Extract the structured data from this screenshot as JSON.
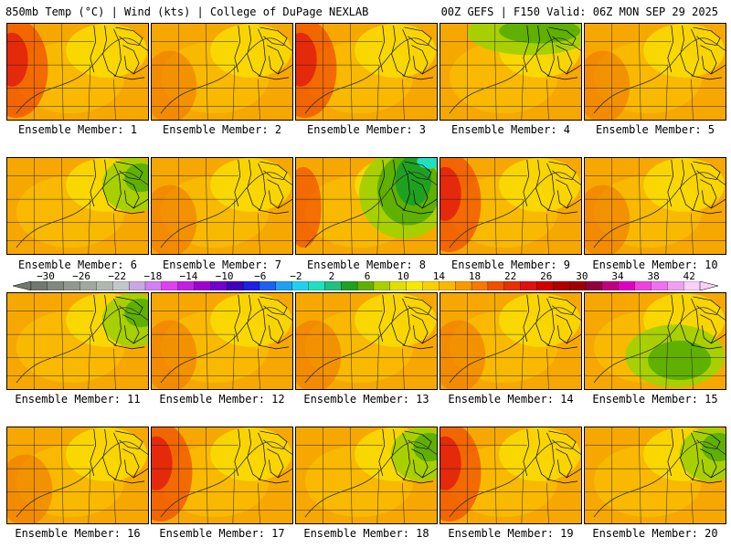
{
  "header": {
    "left": "850mb Temp (°C) | Wind (kts) | College of DuPage NEXLAB",
    "right": "00Z GEFS | F150 Valid: 06Z MON SEP 29 2025"
  },
  "colorbar": {
    "labels": [
      "−30",
      "−26",
      "−22",
      "−18",
      "−14",
      "−10",
      "−6",
      "−2",
      "2",
      "6",
      "10",
      "14",
      "18",
      "22",
      "26",
      "30",
      "34",
      "38",
      "42"
    ],
    "colors": [
      "#707870",
      "#808880",
      "#909890",
      "#a0a8a0",
      "#b0b8b0",
      "#c0c8c8",
      "#c8a8e0",
      "#d080f0",
      "#e040f0",
      "#c020e0",
      "#a000d0",
      "#7000d0",
      "#4000c0",
      "#2020e0",
      "#2060f0",
      "#20a0f0",
      "#20d0f0",
      "#20e0c0",
      "#20c080",
      "#20a020",
      "#60b000",
      "#a8d000",
      "#e0e000",
      "#f8e800",
      "#f8d000",
      "#f8b800",
      "#f89800",
      "#f87800",
      "#f05000",
      "#e83000",
      "#e01010",
      "#d00000",
      "#b00000",
      "#a00000",
      "#900040",
      "#c00080",
      "#e000c0",
      "#f040e0",
      "#f070f0",
      "#f0a0f0",
      "#f8d0f8"
    ]
  },
  "members": [
    {
      "caption": "Ensemble Member: 1",
      "tint": "west_hot"
    },
    {
      "caption": "Ensemble Member: 2",
      "tint": "warm"
    },
    {
      "caption": "Ensemble Member: 3",
      "tint": "west_hot"
    },
    {
      "caption": "Ensemble Member: 4",
      "tint": "north_cool"
    },
    {
      "caption": "Ensemble Member: 5",
      "tint": "warm"
    },
    {
      "caption": "Ensemble Member: 6",
      "tint": "east_cool"
    },
    {
      "caption": "Ensemble Member: 7",
      "tint": "warm"
    },
    {
      "caption": "Ensemble Member: 8",
      "tint": "ne_cold"
    },
    {
      "caption": "Ensemble Member: 9",
      "tint": "west_hot"
    },
    {
      "caption": "Ensemble Member: 10",
      "tint": "warm"
    },
    {
      "caption": "Ensemble Member: 11",
      "tint": "east_cool"
    },
    {
      "caption": "Ensemble Member: 12",
      "tint": "warm"
    },
    {
      "caption": "Ensemble Member: 13",
      "tint": "warm"
    },
    {
      "caption": "Ensemble Member: 14",
      "tint": "warm"
    },
    {
      "caption": "Ensemble Member: 15",
      "tint": "se_cool"
    },
    {
      "caption": "Ensemble Member: 16",
      "tint": "warm"
    },
    {
      "caption": "Ensemble Member: 17",
      "tint": "west_hot"
    },
    {
      "caption": "Ensemble Member: 18",
      "tint": "east_cool"
    },
    {
      "caption": "Ensemble Member: 19",
      "tint": "west_hot"
    },
    {
      "caption": "Ensemble Member: 20",
      "tint": "east_cool"
    }
  ]
}
